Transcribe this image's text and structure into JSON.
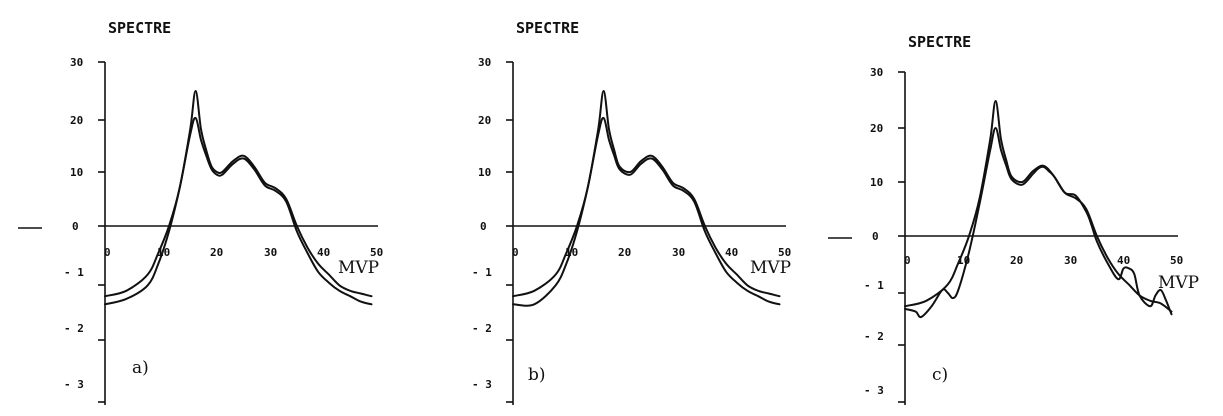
{
  "chart_data": [
    {
      "type": "line",
      "title": "SPECTRE",
      "xlabel": "MVP",
      "panel_label": "a)",
      "x_ticks": [
        "0",
        "10",
        "20",
        "30",
        "40",
        "50"
      ],
      "y_ticks": [
        "30",
        "20",
        "10",
        "0",
        "- 1",
        "- 2",
        "- 3"
      ],
      "series": [
        {
          "x": [
            0,
            4,
            8,
            10,
            12,
            14,
            16,
            17,
            18,
            19,
            20,
            21,
            22,
            24,
            26,
            28,
            30,
            32,
            34,
            36,
            38,
            40,
            42,
            44,
            46,
            48,
            50
          ],
          "y": [
            -13,
            -12,
            -9,
            -5,
            0,
            7,
            18,
            25,
            18,
            14,
            11,
            10,
            10,
            12,
            13,
            11,
            8,
            7,
            5,
            0,
            -4,
            -7,
            -9,
            -11,
            -12,
            -12.5,
            -13
          ]
        },
        {
          "x": [
            0,
            4,
            8,
            10,
            12,
            14,
            16,
            17,
            18,
            19,
            20,
            21,
            22,
            24,
            26,
            28,
            30,
            32,
            34,
            36,
            38,
            40,
            42,
            44,
            46,
            48,
            50
          ],
          "y": [
            -14.5,
            -13.5,
            -11,
            -7,
            -1,
            7,
            17,
            20,
            16,
            13,
            10.5,
            9.5,
            9.5,
            11.5,
            12.5,
            10.5,
            7.5,
            6.5,
            4.5,
            -1,
            -5,
            -8.5,
            -10.5,
            -12,
            -13,
            -14,
            -14.5
          ]
        }
      ]
    },
    {
      "type": "line",
      "title": "SPECTRE",
      "xlabel": "MVP",
      "panel_label": "b)",
      "x_ticks": [
        "0",
        "10",
        "20",
        "30",
        "40",
        "50"
      ],
      "y_ticks": [
        "30",
        "20",
        "10",
        "0",
        "- 1",
        "- 2",
        "- 3"
      ],
      "series": [
        {
          "x": [
            0,
            4,
            8,
            10,
            12,
            14,
            16,
            17,
            18,
            19,
            20,
            22,
            24,
            26,
            28,
            30,
            32,
            34,
            36,
            38,
            40,
            42,
            44,
            46,
            48,
            50
          ],
          "y": [
            -13,
            -12,
            -9,
            -5,
            0,
            7,
            18,
            25,
            18,
            14,
            11,
            10,
            12,
            13,
            11,
            8,
            7,
            5,
            0,
            -4,
            -7,
            -9,
            -11,
            -12,
            -12.5,
            -13
          ]
        },
        {
          "x": [
            0,
            4,
            8,
            10,
            12,
            14,
            16,
            17,
            18,
            19,
            20,
            22,
            24,
            26,
            28,
            30,
            32,
            34,
            36,
            38,
            40,
            42,
            44,
            46,
            48,
            50
          ],
          "y": [
            -14.5,
            -14.5,
            -11,
            -7,
            -1,
            7,
            17,
            20,
            16,
            13,
            10.5,
            9.5,
            11.5,
            12.5,
            10.5,
            7.5,
            6.5,
            4.5,
            -1,
            -5,
            -8.5,
            -10.5,
            -12,
            -13,
            -14,
            -14.5
          ]
        }
      ]
    },
    {
      "type": "line",
      "title": "SPECTRE",
      "xlabel": "MVP",
      "panel_label": "c)",
      "x_ticks": [
        "0",
        "10",
        "20",
        "30",
        "40",
        "50"
      ],
      "y_ticks": [
        "30",
        "20",
        "10",
        "0",
        "- 1",
        "- 2",
        "- 3"
      ],
      "series": [
        {
          "x": [
            0,
            4,
            8,
            10,
            12,
            14,
            16,
            17,
            18,
            19,
            20,
            22,
            24,
            26,
            28,
            30,
            32,
            34,
            36,
            38,
            40,
            42,
            44,
            46,
            48,
            50
          ],
          "y": [
            -13,
            -12,
            -9,
            -5,
            0,
            7,
            18,
            25,
            18,
            14,
            11,
            10,
            12,
            13,
            11,
            8,
            7,
            5,
            0,
            -4,
            -7,
            -9,
            -11,
            -12,
            -12.5,
            -14
          ]
        },
        {
          "x": [
            0,
            2,
            3,
            5,
            7,
            8,
            9,
            10,
            12,
            14,
            16,
            17,
            18,
            19,
            20,
            22,
            24,
            25,
            26,
            27,
            28,
            30,
            32,
            34,
            35,
            36,
            38,
            40,
            41,
            42,
            43,
            44,
            46,
            47,
            48,
            49,
            50
          ],
          "y": [
            -13.5,
            -14,
            -15,
            -13,
            -10,
            -10.5,
            -11.5,
            -10,
            -3,
            6,
            16,
            20,
            16,
            13,
            10.5,
            9.5,
            11.5,
            12.5,
            12.8,
            12,
            11,
            8,
            7.5,
            4.5,
            2,
            -1,
            -5,
            -8,
            -6,
            -6,
            -7,
            -11,
            -13,
            -11,
            -10,
            -12,
            -14.5
          ]
        }
      ]
    }
  ]
}
